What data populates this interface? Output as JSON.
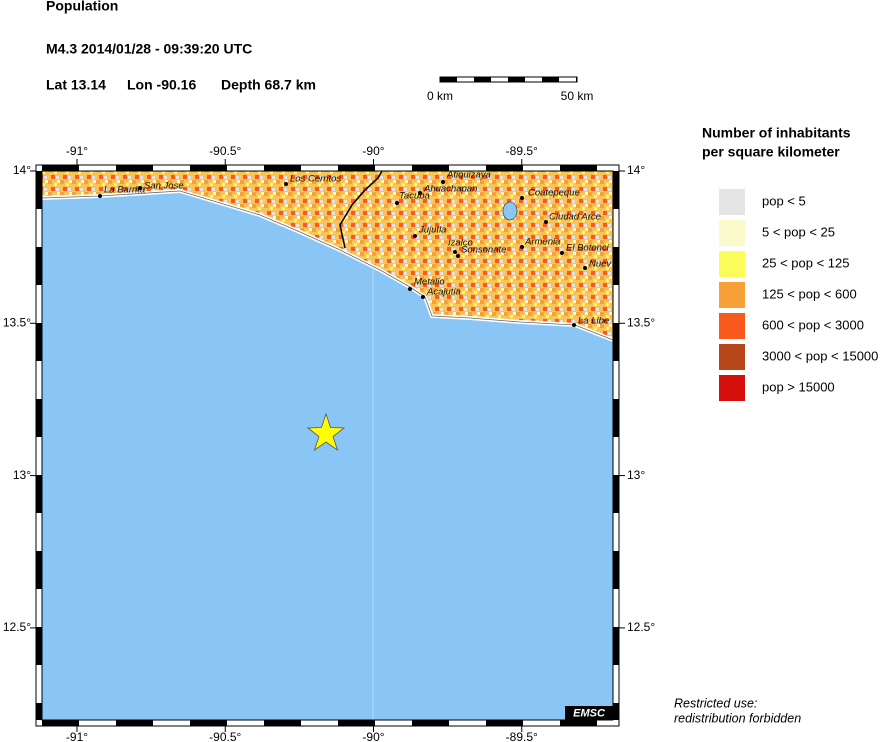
{
  "header": {
    "title": "Population",
    "event": "M4.3  2014/01/28 - 09:39:20 UTC",
    "lat": "Lat 13.14",
    "lon": "Lon -90.16",
    "depth": "Depth  68.7 km"
  },
  "scale_bar": {
    "start": "0 km",
    "end": "50 km"
  },
  "map": {
    "lon_ticks": [
      {
        "value": -91,
        "label": "-91°"
      },
      {
        "value": -90.5,
        "label": "-90.5°"
      },
      {
        "value": -90,
        "label": "-90°"
      },
      {
        "value": -89.5,
        "label": "-89.5°"
      }
    ],
    "lat_ticks": [
      {
        "value": 14,
        "label": "14°"
      },
      {
        "value": 13.5,
        "label": "13.5°"
      },
      {
        "value": 13,
        "label": "13°"
      },
      {
        "value": 12.5,
        "label": "12.5°"
      }
    ],
    "cities": [
      "La Barrita",
      "San Jose",
      "Los Cerritos",
      "Atiquizaya",
      "Ahuachapan",
      "Tacuba",
      "Coatepeque",
      "Ciudad Arce",
      "Jujutla",
      "Izalco",
      "Sonsonate",
      "Armenia",
      "El Botonci",
      "Nuev",
      "Metalio",
      "Acajutla",
      "La Libe"
    ],
    "credit": "EMSC"
  },
  "legend": {
    "title_lines": [
      "Number of inhabitants",
      "per square kilometer"
    ],
    "items": [
      {
        "label": "pop < 5",
        "color": "#e5e5e5"
      },
      {
        "label": "5 < pop < 25",
        "color": "#fafacb"
      },
      {
        "label": "25 < pop < 125",
        "color": "#fbfb5a"
      },
      {
        "label": "125 < pop < 600",
        "color": "#f7a038"
      },
      {
        "label": "600 < pop < 3000",
        "color": "#f8591d"
      },
      {
        "label": "3000 < pop < 15000",
        "color": "#b8461b"
      },
      {
        "label": "pop > 15000",
        "color": "#d6100c"
      }
    ]
  },
  "notice": [
    "Restricted use:",
    "redistribution forbidden"
  ]
}
